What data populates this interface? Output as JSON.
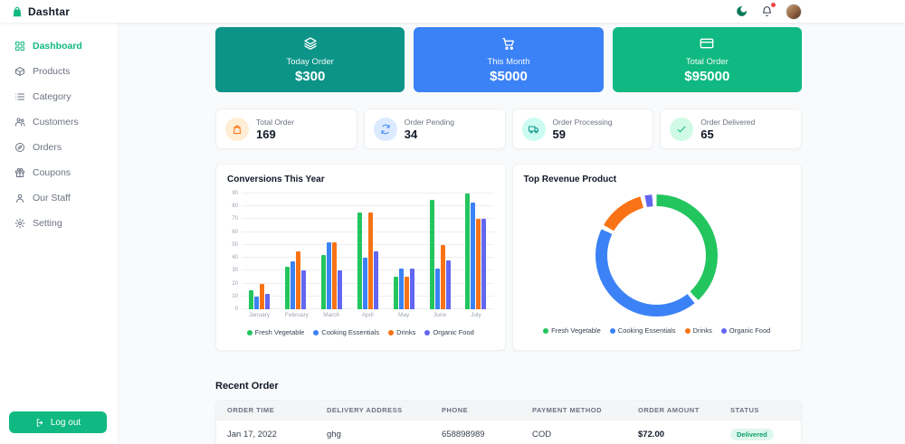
{
  "app": {
    "name": "Dashtar"
  },
  "topbar": {
    "icons": [
      "moon-icon",
      "bell-icon",
      "avatar"
    ],
    "has_notification_dot": true
  },
  "sidebar": {
    "items": [
      {
        "label": "Dashboard",
        "icon": "grid-icon",
        "active": true
      },
      {
        "label": "Products",
        "icon": "box-icon",
        "active": false
      },
      {
        "label": "Category",
        "icon": "list-icon",
        "active": false
      },
      {
        "label": "Customers",
        "icon": "users-icon",
        "active": false
      },
      {
        "label": "Orders",
        "icon": "compass-icon",
        "active": false
      },
      {
        "label": "Coupons",
        "icon": "gift-icon",
        "active": false
      },
      {
        "label": "Our Staff",
        "icon": "user-icon",
        "active": false
      },
      {
        "label": "Setting",
        "icon": "gear-icon",
        "active": false
      }
    ],
    "logout_label": "Log out"
  },
  "summary_cards": [
    {
      "title": "Today Order",
      "amount": "$300",
      "color": "#0d9488",
      "icon": "layers-icon"
    },
    {
      "title": "This Month",
      "amount": "$5000",
      "color": "#3b82f6",
      "icon": "cart-icon"
    },
    {
      "title": "Total Order",
      "amount": "$95000",
      "color": "#10b981",
      "icon": "credit-card-icon"
    }
  ],
  "stat_cards": [
    {
      "label": "Total Order",
      "value": "169",
      "icon": "shopping-bag-icon",
      "color": "#f97316",
      "bg": "#ffedd5"
    },
    {
      "label": "Order Pending",
      "value": "34",
      "icon": "refresh-icon",
      "color": "#3b82f6",
      "bg": "#dbeafe"
    },
    {
      "label": "Order Processing",
      "value": "59",
      "icon": "truck-icon",
      "color": "#0d9488",
      "bg": "#ccfbf1"
    },
    {
      "label": "Order Delivered",
      "value": "65",
      "icon": "check-icon",
      "color": "#10b981",
      "bg": "#d1fae5"
    }
  ],
  "chart_data": [
    {
      "type": "bar",
      "title": "Conversions This Year",
      "categories": [
        "January",
        "February",
        "March",
        "April",
        "May",
        "June",
        "July"
      ],
      "series": [
        {
          "name": "Fresh Vegetable",
          "color": "#22c55e",
          "values": [
            15,
            33,
            42,
            75,
            25,
            85,
            90
          ]
        },
        {
          "name": "Cooking Essentials",
          "color": "#3b82f6",
          "values": [
            10,
            37,
            52,
            40,
            32,
            32,
            83
          ]
        },
        {
          "name": "Drinks",
          "color": "#f97316",
          "values": [
            20,
            45,
            52,
            75,
            25,
            50,
            70
          ]
        },
        {
          "name": "Organic Food",
          "color": "#6366f1",
          "values": [
            12,
            30,
            30,
            45,
            32,
            38,
            70
          ]
        }
      ],
      "ylim": [
        0,
        90
      ],
      "ytick_step": 10,
      "grid": true,
      "legend_position": "bottom"
    },
    {
      "type": "pie",
      "title": "Top Revenue Product",
      "labels": [
        "Fresh Vegetable",
        "Cooking Essentials",
        "Drinks",
        "Organic Food"
      ],
      "values": [
        40,
        45,
        13,
        2
      ],
      "colors": [
        "#22c55e",
        "#3b82f6",
        "#f97316",
        "#6366f1"
      ],
      "legend_position": "bottom"
    }
  ],
  "recent_order": {
    "title": "Recent Order",
    "headers": [
      "Order Time",
      "Delivery Address",
      "Phone",
      "Payment Method",
      "Order Amount",
      "Status"
    ],
    "rows": [
      [
        "Jan 17, 2022",
        "ghg",
        "658898989",
        "COD",
        "$72.00",
        "Delivered"
      ]
    ],
    "status_colors": {
      "Delivered": {
        "text": "#0e9f6e",
        "bg": "#def7ec"
      }
    }
  }
}
